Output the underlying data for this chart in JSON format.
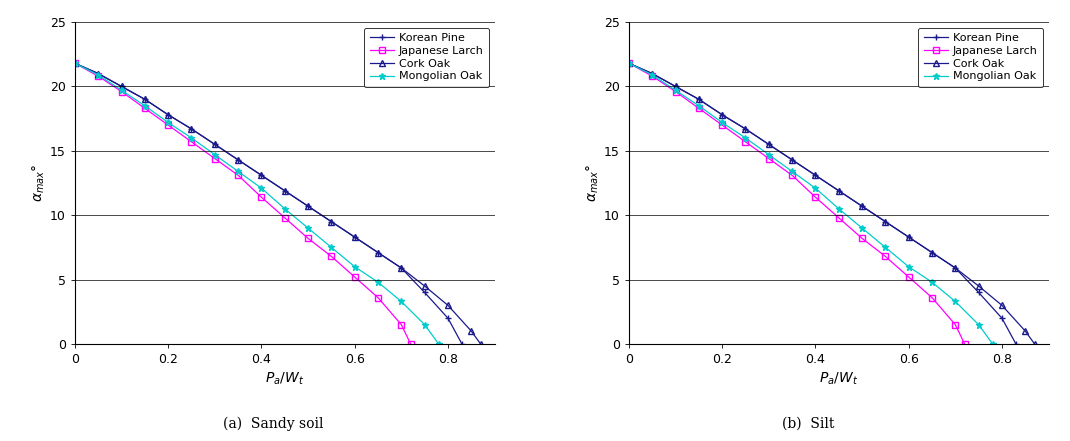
{
  "subplot_a_title": "(a)  Sandy soil",
  "subplot_b_title": "(b)  Silt",
  "xlabel_a": "$P_a/W_t$",
  "xlabel_b": "$P_a/W_t$",
  "ylabel": "$\\alpha_{max}$°",
  "xlim": [
    0,
    0.9
  ],
  "ylim": [
    0,
    25
  ],
  "yticks": [
    0,
    5,
    10,
    15,
    20,
    25
  ],
  "xticks": [
    0.0,
    0.2,
    0.4,
    0.6,
    0.8
  ],
  "xtick_labels": [
    "0",
    "0.2",
    "0.4",
    "0.6",
    "0.8"
  ],
  "legend_labels": [
    "Korean Pine",
    "Japanese Larch",
    "Cork Oak",
    "Mongolian Oak"
  ],
  "subplot_a": {
    "korean_pine": {
      "x": [
        0.0,
        0.05,
        0.1,
        0.15,
        0.2,
        0.25,
        0.3,
        0.35,
        0.4,
        0.45,
        0.5,
        0.55,
        0.6,
        0.65,
        0.7,
        0.75,
        0.8,
        0.83
      ],
      "y": [
        21.8,
        21.0,
        20.0,
        19.0,
        17.8,
        16.7,
        15.5,
        14.3,
        13.1,
        11.9,
        10.7,
        9.5,
        8.3,
        7.1,
        5.9,
        4.0,
        2.0,
        0.0
      ]
    },
    "japanese_larch": {
      "x": [
        0.0,
        0.05,
        0.1,
        0.15,
        0.2,
        0.25,
        0.3,
        0.35,
        0.4,
        0.45,
        0.5,
        0.55,
        0.6,
        0.65,
        0.7,
        0.72
      ],
      "y": [
        21.8,
        20.8,
        19.6,
        18.3,
        17.0,
        15.7,
        14.4,
        13.1,
        11.4,
        9.8,
        8.2,
        6.8,
        5.2,
        3.6,
        1.5,
        0.0
      ]
    },
    "cork_oak": {
      "x": [
        0.0,
        0.05,
        0.1,
        0.15,
        0.2,
        0.25,
        0.3,
        0.35,
        0.4,
        0.45,
        0.5,
        0.55,
        0.6,
        0.65,
        0.7,
        0.75,
        0.8,
        0.85,
        0.87
      ],
      "y": [
        21.8,
        21.0,
        20.0,
        19.0,
        17.8,
        16.7,
        15.5,
        14.3,
        13.1,
        11.9,
        10.7,
        9.5,
        8.3,
        7.1,
        5.9,
        4.5,
        3.0,
        1.0,
        0.0
      ]
    },
    "mongolian_oak": {
      "x": [
        0.0,
        0.05,
        0.1,
        0.15,
        0.2,
        0.25,
        0.3,
        0.35,
        0.4,
        0.45,
        0.5,
        0.55,
        0.6,
        0.65,
        0.7,
        0.75,
        0.78
      ],
      "y": [
        21.8,
        20.9,
        19.7,
        18.5,
        17.2,
        16.0,
        14.7,
        13.4,
        12.1,
        10.5,
        9.0,
        7.5,
        6.0,
        4.8,
        3.3,
        1.5,
        0.0
      ]
    }
  },
  "subplot_b": {
    "korean_pine": {
      "x": [
        0.0,
        0.05,
        0.1,
        0.15,
        0.2,
        0.25,
        0.3,
        0.35,
        0.4,
        0.45,
        0.5,
        0.55,
        0.6,
        0.65,
        0.7,
        0.75,
        0.8,
        0.83
      ],
      "y": [
        21.8,
        21.0,
        20.0,
        19.0,
        17.8,
        16.7,
        15.5,
        14.3,
        13.1,
        11.9,
        10.7,
        9.5,
        8.3,
        7.1,
        5.9,
        4.0,
        2.0,
        0.0
      ]
    },
    "japanese_larch": {
      "x": [
        0.0,
        0.05,
        0.1,
        0.15,
        0.2,
        0.25,
        0.3,
        0.35,
        0.4,
        0.45,
        0.5,
        0.55,
        0.6,
        0.65,
        0.7,
        0.72
      ],
      "y": [
        21.8,
        20.8,
        19.6,
        18.3,
        17.0,
        15.7,
        14.4,
        13.1,
        11.4,
        9.8,
        8.2,
        6.8,
        5.2,
        3.6,
        1.5,
        0.0
      ]
    },
    "cork_oak": {
      "x": [
        0.0,
        0.05,
        0.1,
        0.15,
        0.2,
        0.25,
        0.3,
        0.35,
        0.4,
        0.45,
        0.5,
        0.55,
        0.6,
        0.65,
        0.7,
        0.75,
        0.8,
        0.85,
        0.87
      ],
      "y": [
        21.8,
        21.0,
        20.0,
        19.0,
        17.8,
        16.7,
        15.5,
        14.3,
        13.1,
        11.9,
        10.7,
        9.5,
        8.3,
        7.1,
        5.9,
        4.5,
        3.0,
        1.0,
        0.0
      ]
    },
    "mongolian_oak": {
      "x": [
        0.0,
        0.05,
        0.1,
        0.15,
        0.2,
        0.25,
        0.3,
        0.35,
        0.4,
        0.45,
        0.5,
        0.55,
        0.6,
        0.65,
        0.7,
        0.75,
        0.78
      ],
      "y": [
        21.8,
        20.9,
        19.7,
        18.5,
        17.2,
        16.0,
        14.7,
        13.4,
        12.1,
        10.5,
        9.0,
        7.5,
        6.0,
        4.8,
        3.3,
        1.5,
        0.0
      ]
    }
  },
  "background_color": "#ffffff",
  "line_width": 0.9,
  "marker_size_plus": 5,
  "marker_size_sq": 4,
  "marker_size_tri": 4,
  "marker_size_star": 5
}
